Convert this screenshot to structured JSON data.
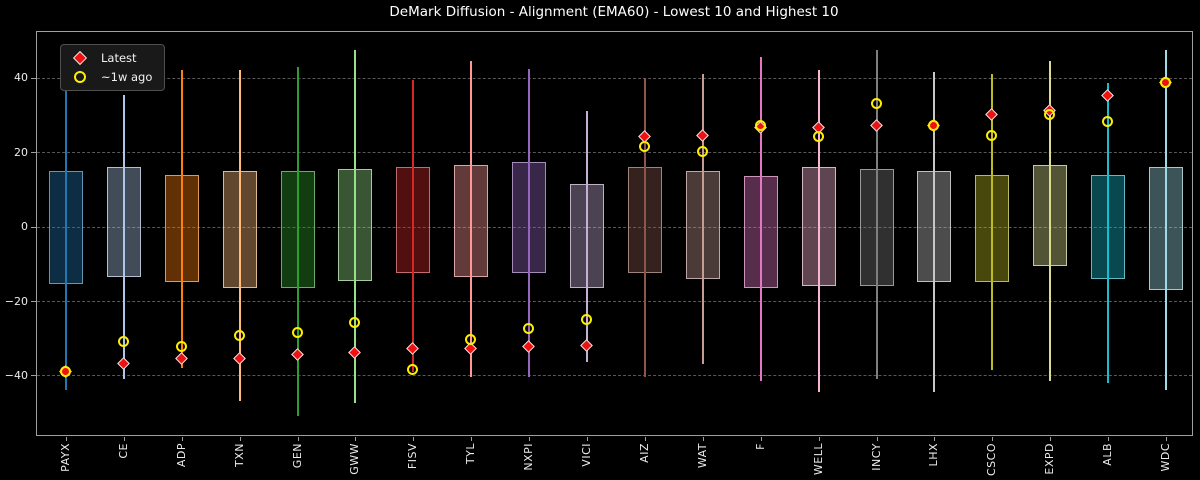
{
  "title": "DeMark Diffusion - Alignment (EMA60) - Lowest 10 and Highest 10",
  "legend": {
    "latest_label": "Latest",
    "week_ago_label": "~1w ago",
    "latest_color": "#ee1111",
    "week_ago_color": "#ffee00",
    "position": "upper left"
  },
  "chart_data": {
    "type": "boxplot",
    "title": "DeMark Diffusion - Alignment (EMA60) - Lowest 10 and Highest 10",
    "xlabel": "",
    "ylabel": "",
    "y_ticks": [
      40,
      20,
      0,
      -20,
      -40
    ],
    "y_tick_labels": [
      "40",
      "20",
      "0",
      "−20",
      "−40"
    ],
    "ylim": [
      -56.3,
      52.6
    ],
    "grid": "horizontal dashed",
    "legend_position": "upper left",
    "marker_legend": {
      "diamond": "Latest",
      "circle": "~1w ago"
    },
    "series": [
      {
        "ticker": "PAYX",
        "color": "#1f77b4",
        "whisker_high": 45,
        "whisker_low": -44,
        "box_high": 15,
        "box_low": -15.5,
        "latest": -39,
        "week_ago": -39
      },
      {
        "ticker": "CE",
        "color": "#aec7e8",
        "whisker_high": 35.5,
        "whisker_low": -41,
        "box_high": 16,
        "box_low": -13.5,
        "latest": -37,
        "week_ago": -31
      },
      {
        "ticker": "ADP",
        "color": "#ff7f0e",
        "whisker_high": 42,
        "whisker_low": -38,
        "box_high": 14,
        "box_low": -15,
        "latest": -35.5,
        "week_ago": -32.5
      },
      {
        "ticker": "TXN",
        "color": "#ffbb78",
        "whisker_high": 42,
        "whisker_low": -47,
        "box_high": 15,
        "box_low": -16.5,
        "latest": -35.5,
        "week_ago": -29.5
      },
      {
        "ticker": "GEN",
        "color": "#2ca02c",
        "whisker_high": 43,
        "whisker_low": -51,
        "box_high": 15,
        "box_low": -16.5,
        "latest": -34.5,
        "week_ago": -28.5
      },
      {
        "ticker": "GWW",
        "color": "#98df8a",
        "whisker_high": 47.5,
        "whisker_low": -47.5,
        "box_high": 15.5,
        "box_low": -14.5,
        "latest": -34,
        "week_ago": -26
      },
      {
        "ticker": "FISV",
        "color": "#d62728",
        "whisker_high": 39.5,
        "whisker_low": -39,
        "box_high": 16,
        "box_low": -12.5,
        "latest": -33,
        "week_ago": -38.5
      },
      {
        "ticker": "TYL",
        "color": "#ff9896",
        "whisker_high": 44.5,
        "whisker_low": -40.5,
        "box_high": 16.5,
        "box_low": -13.5,
        "latest": -33,
        "week_ago": -30.5
      },
      {
        "ticker": "NXPI",
        "color": "#9467bd",
        "whisker_high": 42.5,
        "whisker_low": -40.5,
        "box_high": 17.5,
        "box_low": -12.5,
        "latest": -32.5,
        "week_ago": -27.5
      },
      {
        "ticker": "VICI",
        "color": "#c5b0d5",
        "whisker_high": 31,
        "whisker_low": -36.5,
        "box_high": 11.5,
        "box_low": -16.5,
        "latest": -32,
        "week_ago": -25
      },
      {
        "ticker": "AIZ",
        "color": "#8c564b",
        "whisker_high": 40,
        "whisker_low": -40.5,
        "box_high": 16,
        "box_low": -12.5,
        "latest": 24,
        "week_ago": 21.5
      },
      {
        "ticker": "WAT",
        "color": "#c49c94",
        "whisker_high": 41,
        "whisker_low": -37,
        "box_high": 15,
        "box_low": -14,
        "latest": 24.5,
        "week_ago": 20
      },
      {
        "ticker": "F",
        "color": "#e377c2",
        "whisker_high": 45.5,
        "whisker_low": -41.5,
        "box_high": 13.5,
        "box_low": -16.5,
        "latest": 26.5,
        "week_ago": 27
      },
      {
        "ticker": "WELL",
        "color": "#f7b6d2",
        "whisker_high": 42,
        "whisker_low": -44.5,
        "box_high": 16,
        "box_low": -16,
        "latest": 26.5,
        "week_ago": 24
      },
      {
        "ticker": "INCY",
        "color": "#7f7f7f",
        "whisker_high": 47.5,
        "whisker_low": -41,
        "box_high": 15.5,
        "box_low": -16,
        "latest": 27,
        "week_ago": 33
      },
      {
        "ticker": "LHX",
        "color": "#c7c7c7",
        "whisker_high": 41.5,
        "whisker_low": -44.5,
        "box_high": 15,
        "box_low": -15,
        "latest": 27,
        "week_ago": 27
      },
      {
        "ticker": "CSCO",
        "color": "#bcbd22",
        "whisker_high": 41,
        "whisker_low": -38.5,
        "box_high": 14,
        "box_low": -15,
        "latest": 30,
        "week_ago": 24.5
      },
      {
        "ticker": "EXPD",
        "color": "#dbdb8d",
        "whisker_high": 44.5,
        "whisker_low": -41.5,
        "box_high": 16.5,
        "box_low": -10.5,
        "latest": 31,
        "week_ago": 30
      },
      {
        "ticker": "ALB",
        "color": "#17becf",
        "whisker_high": 38.5,
        "whisker_low": -42,
        "box_high": 14,
        "box_low": -14,
        "latest": 35,
        "week_ago": 28
      },
      {
        "ticker": "WDC",
        "color": "#9edae5",
        "whisker_high": 47.5,
        "whisker_low": -44,
        "box_high": 16,
        "box_low": -17,
        "latest": 38.5,
        "week_ago": 38.5
      }
    ]
  }
}
